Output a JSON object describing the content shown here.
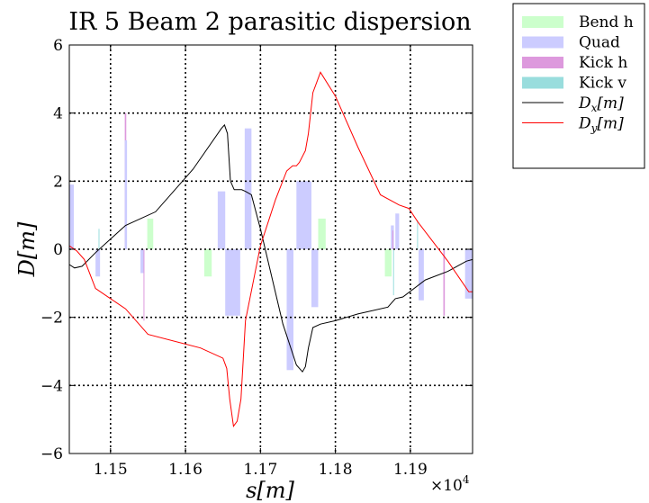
{
  "chart_data": {
    "type": "line",
    "title": "IR 5 Beam 2 parasitic dispersion",
    "xlabel": "s[m]",
    "ylabel": "D[m]",
    "x_multiplier_label": "×10",
    "x_multiplier_exp": "4",
    "xlim": [
      11445,
      11983
    ],
    "ylim": [
      -6,
      6
    ],
    "x_ticks": [
      11500,
      11600,
      11700,
      11800,
      11900
    ],
    "x_tick_labels": [
      "1.15",
      "1.16",
      "1.17",
      "1.18",
      "1.19"
    ],
    "y_ticks": [
      -6,
      -4,
      -2,
      0,
      2,
      4,
      6
    ],
    "y_tick_labels": [
      "−6",
      "−4",
      "−2",
      "0",
      "2",
      "4",
      "6"
    ],
    "grid": true,
    "legend_position": "outside-right",
    "legend": [
      {
        "label": "Bend h",
        "kind": "patch",
        "color": "#ccffcc"
      },
      {
        "label": "Quad",
        "kind": "patch",
        "color": "#ccccff"
      },
      {
        "label": "Kick h",
        "kind": "patch",
        "color": "#dd99dd"
      },
      {
        "label": "Kick v",
        "kind": "patch",
        "color": "#99dddd"
      },
      {
        "label": "D",
        "sub": "x",
        "unit": "[m]",
        "kind": "line",
        "color": "#000000"
      },
      {
        "label": "D",
        "sub": "y",
        "unit": "[m]",
        "kind": "line",
        "color": "#ff0000"
      }
    ],
    "element_bars": [
      {
        "kind": "quad",
        "x0": 11445,
        "x1": 11451,
        "y": 1.9
      },
      {
        "kind": "quad",
        "x0": 11480,
        "x1": 11486,
        "y": -0.8
      },
      {
        "kind": "kickv",
        "x0": 11484,
        "x1": 11485,
        "y": 0.6
      },
      {
        "kind": "kickh",
        "x0": 11519,
        "x1": 11521,
        "y": 4.0
      },
      {
        "kind": "quad",
        "x0": 11519,
        "x1": 11522,
        "y": 3.2
      },
      {
        "kind": "quad",
        "x0": 11540,
        "x1": 11545,
        "y": -0.7
      },
      {
        "kind": "kickh",
        "x0": 11544,
        "x1": 11545,
        "y": -2.1
      },
      {
        "kind": "bend",
        "x0": 11549,
        "x1": 11557,
        "y": 0.9
      },
      {
        "kind": "bend",
        "x0": 11625,
        "x1": 11635,
        "y": -0.8
      },
      {
        "kind": "quad",
        "x0": 11643,
        "x1": 11653,
        "y": 1.7
      },
      {
        "kind": "quad",
        "x0": 11653,
        "x1": 11673,
        "y": -1.95
      },
      {
        "kind": "quad",
        "x0": 11679,
        "x1": 11688,
        "y": 3.55
      },
      {
        "kind": "quad",
        "x0": 11735,
        "x1": 11744,
        "y": -3.55
      },
      {
        "kind": "quad",
        "x0": 11748,
        "x1": 11768,
        "y": 2.0
      },
      {
        "kind": "quad",
        "x0": 11768,
        "x1": 11777,
        "y": -1.7
      },
      {
        "kind": "bend",
        "x0": 11777,
        "x1": 11787,
        "y": 0.9
      },
      {
        "kind": "bend",
        "x0": 11866,
        "x1": 11875,
        "y": -0.8
      },
      {
        "kind": "quad",
        "x0": 11874,
        "x1": 11878,
        "y": 0.7
      },
      {
        "kind": "kickh",
        "x0": 11876,
        "x1": 11877,
        "y": 0.55
      },
      {
        "kind": "kickv",
        "x0": 11877,
        "x1": 11878,
        "y": -1.35
      },
      {
        "kind": "quad",
        "x0": 11880,
        "x1": 11885,
        "y": 1.05
      },
      {
        "kind": "kickv",
        "x0": 11909,
        "x1": 11910,
        "y": 0.85
      },
      {
        "kind": "quad",
        "x0": 11911,
        "x1": 11918,
        "y": -1.5
      },
      {
        "kind": "kickh",
        "x0": 11944,
        "x1": 11946,
        "y": -1.95
      },
      {
        "kind": "quad",
        "x0": 11973,
        "x1": 11983,
        "y": -1.45
      }
    ],
    "series": [
      {
        "name": "D_x[m]",
        "color": "#000000",
        "x": [
          11445,
          11452,
          11462,
          11480,
          11500,
          11520,
          11560,
          11610,
          11648,
          11652,
          11656,
          11660,
          11665,
          11675,
          11680,
          11688,
          11700,
          11715,
          11730,
          11748,
          11756,
          11760,
          11764,
          11770,
          11780,
          11800,
          11830,
          11870,
          11880,
          11890,
          11920,
          11950,
          11975,
          11983
        ],
        "y": [
          -0.45,
          -0.55,
          -0.5,
          -0.1,
          0.3,
          0.7,
          1.1,
          2.35,
          3.55,
          3.65,
          3.4,
          2.0,
          1.75,
          1.75,
          1.7,
          1.6,
          0.6,
          -0.8,
          -2.2,
          -3.4,
          -3.6,
          -3.45,
          -2.9,
          -2.3,
          -2.2,
          -2.1,
          -1.9,
          -1.7,
          -1.45,
          -1.4,
          -0.9,
          -0.65,
          -0.35,
          -0.3
        ]
      },
      {
        "name": "D_y[m]",
        "color": "#ff0000",
        "x": [
          11445,
          11455,
          11465,
          11480,
          11500,
          11520,
          11550,
          11620,
          11650,
          11655,
          11659,
          11664,
          11669,
          11674,
          11680,
          11700,
          11720,
          11735,
          11743,
          11748,
          11752,
          11760,
          11764,
          11770,
          11780,
          11800,
          11830,
          11860,
          11885,
          11898,
          11910,
          11950,
          11978,
          11983
        ],
        "y": [
          0.1,
          -0.05,
          -0.3,
          -1.15,
          -1.45,
          -1.75,
          -2.5,
          -2.9,
          -3.2,
          -3.5,
          -4.4,
          -5.2,
          -5.05,
          -4.4,
          -2.1,
          0.1,
          1.45,
          2.3,
          2.45,
          2.45,
          2.55,
          2.9,
          3.4,
          4.6,
          5.2,
          4.5,
          3.0,
          1.6,
          1.3,
          1.2,
          0.8,
          -0.35,
          -1.25,
          -1.25
        ]
      }
    ]
  }
}
